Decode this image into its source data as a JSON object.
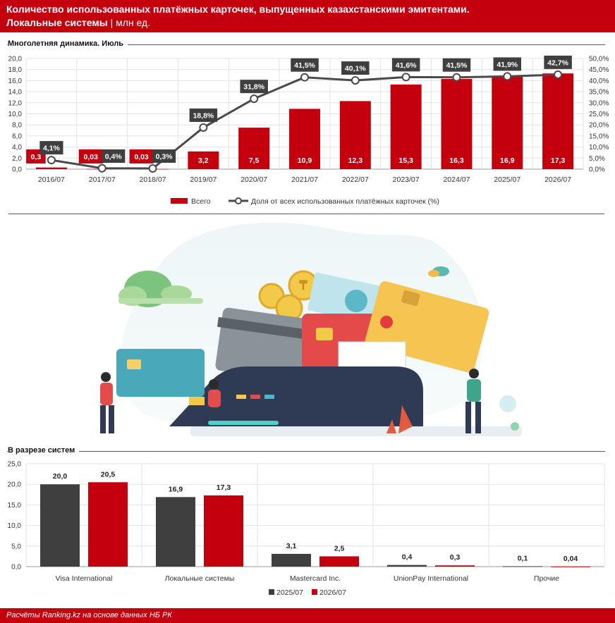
{
  "header": {
    "title": "Количество использованных платёжных карточек, выпущенных казахстанскими эмитентами.",
    "subtitle_bold": "Локальные системы",
    "subtitle_sep": " | ",
    "subtitle_unit": "млн ед."
  },
  "sections": {
    "top_title": "Многолетняя динамика. Июль",
    "bottom_title": "В разрезе систем"
  },
  "footer": {
    "source": "Расчёты Ranking.kz на основе данных НБ РК"
  },
  "colors": {
    "red": "#c4000f",
    "dark": "#3f3f3f",
    "line": "#4a4a4a"
  },
  "chart_data": [
    {
      "type": "bar",
      "title": "Многолетняя динамика. Июль",
      "categories": [
        "2016/07",
        "2017/07",
        "2018/07",
        "2019/07",
        "2020/07",
        "2021/07",
        "2022/07",
        "2023/07",
        "2024/07",
        "2025/07",
        "2026/07"
      ],
      "series": [
        {
          "name": "Всего",
          "type": "bar",
          "axis": "left",
          "values": [
            0.3,
            0.03,
            0.03,
            3.2,
            7.5,
            10.9,
            12.3,
            15.3,
            16.3,
            16.9,
            17.3
          ],
          "labels": [
            "0,3",
            "0,03",
            "0,03",
            "3,2",
            "7,5",
            "10,9",
            "12,3",
            "15,3",
            "16,3",
            "16,9",
            "17,3"
          ]
        },
        {
          "name": "Доля от всех использованных платёжных карточек (%)",
          "type": "line",
          "axis": "right",
          "values": [
            4.1,
            0.4,
            0.3,
            18.8,
            31.8,
            41.5,
            40.1,
            41.6,
            41.5,
            41.9,
            42.7
          ],
          "labels": [
            "4,1%",
            "0,4%",
            "0,3%",
            "18,8%",
            "31,8%",
            "41,5%",
            "40,1%",
            "41,6%",
            "41,5%",
            "41,9%",
            "42,7%"
          ]
        }
      ],
      "ylim": [
        0,
        20
      ],
      "ylim_right": [
        0,
        50
      ],
      "yticks": [
        "0,0",
        "2,0",
        "4,0",
        "6,0",
        "8,0",
        "10,0",
        "12,0",
        "14,0",
        "16,0",
        "18,0",
        "20,0"
      ],
      "yticks_right": [
        "0,0%",
        "5,0%",
        "10,0%",
        "15,0%",
        "20,0%",
        "25,0%",
        "30,0%",
        "35,0%",
        "40,0%",
        "45,0%",
        "50,0%"
      ],
      "grid": true,
      "legend_position": "bottom"
    },
    {
      "type": "bar",
      "title": "В разрезе систем",
      "categories": [
        "Visa International",
        "Локальные системы",
        "Mastercard Inc.",
        "UnionPay International",
        "Прочие"
      ],
      "series": [
        {
          "name": "2025/07",
          "values": [
            20.0,
            16.9,
            3.1,
            0.4,
            0.1
          ],
          "labels": [
            "20,0",
            "16,9",
            "3,1",
            "0,4",
            "0,1"
          ]
        },
        {
          "name": "2026/07",
          "values": [
            20.5,
            17.3,
            2.5,
            0.3,
            0.04
          ],
          "labels": [
            "20,5",
            "17,3",
            "2,5",
            "0,3",
            "0,04"
          ]
        }
      ],
      "ylim": [
        0,
        25
      ],
      "yticks": [
        "0,0",
        "5,0",
        "10,0",
        "15,0",
        "20,0",
        "25,0"
      ],
      "grid": true,
      "legend_position": "bottom"
    }
  ]
}
